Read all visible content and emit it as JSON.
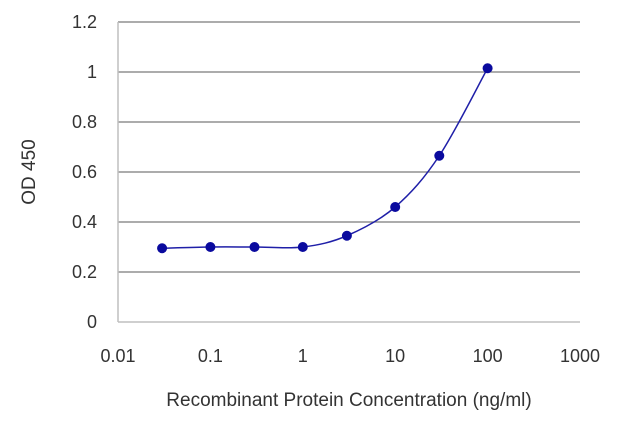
{
  "chart_data": {
    "type": "line",
    "title": "",
    "xlabel": "Recombinant Protein Concentration (ng/ml)",
    "ylabel": "OD 450",
    "x_scale": "log",
    "xlim": [
      0.01,
      1000
    ],
    "ylim": [
      0,
      1.2
    ],
    "x_ticks": [
      0.01,
      0.1,
      1,
      10,
      100,
      1000
    ],
    "x_tick_labels": [
      "0.01",
      "0.1",
      "1",
      "10",
      "100",
      "1000"
    ],
    "y_ticks": [
      0,
      0.2,
      0.4,
      0.6,
      0.8,
      1,
      1.2
    ],
    "y_tick_labels": [
      "0",
      "0.2",
      "0.4",
      "0.6",
      "0.8",
      "1",
      "1.2"
    ],
    "grid": "horizontal",
    "legend": "none",
    "series": [
      {
        "x": [
          0.03,
          0.1,
          0.3,
          1,
          3,
          10,
          30,
          100
        ],
        "y": [
          0.295,
          0.3,
          0.3,
          0.3,
          0.345,
          0.46,
          0.665,
          1.015
        ],
        "color": "#1f1fa8",
        "marker_color": "#0a0a9e"
      }
    ]
  }
}
